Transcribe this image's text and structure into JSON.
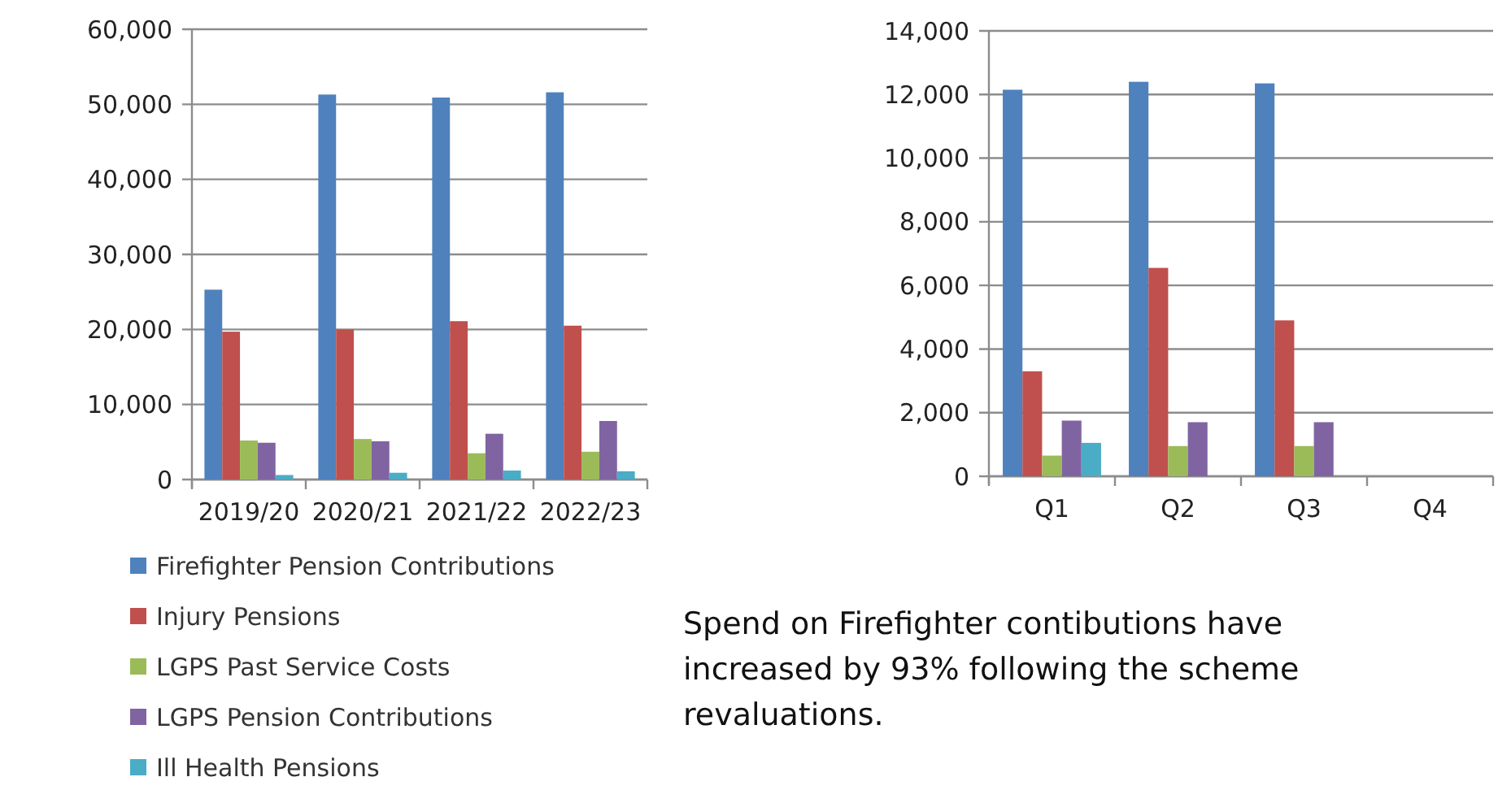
{
  "chart_data": [
    {
      "type": "bar",
      "categories": [
        "2019/20",
        "2020/21",
        "2021/22",
        "2022/23"
      ],
      "ylim": [
        0,
        60000
      ],
      "yticks": [
        {
          "value": 0,
          "label": "0"
        },
        {
          "value": 10000,
          "label": "10,000"
        },
        {
          "value": 20000,
          "label": "20,000"
        },
        {
          "value": 30000,
          "label": "30,000"
        },
        {
          "value": 40000,
          "label": "40,000"
        },
        {
          "value": 50000,
          "label": "50,000"
        },
        {
          "value": 60000,
          "label": "60,000"
        }
      ],
      "grid": "y",
      "legend": "bottom",
      "series": [
        {
          "name": "Firefighter Pension Contributions",
          "color": "#4f81bd",
          "values": [
            25300,
            51300,
            50900,
            51600
          ]
        },
        {
          "name": "Injury Pensions",
          "color": "#c0504d",
          "values": [
            19700,
            20000,
            21100,
            20500
          ]
        },
        {
          "name": "LGPS Past Service Costs",
          "color": "#9bbb59",
          "values": [
            5200,
            5400,
            3500,
            3700
          ]
        },
        {
          "name": "LGPS Pension Contributions",
          "color": "#8064a2",
          "values": [
            4900,
            5100,
            6100,
            7800
          ]
        },
        {
          "name": "Ill Health Pensions",
          "color": "#4bacc6",
          "values": [
            600,
            900,
            1200,
            1100
          ]
        }
      ]
    },
    {
      "type": "bar",
      "categories": [
        "Q1",
        "Q2",
        "Q3",
        "Q4"
      ],
      "ylim": [
        0,
        14000
      ],
      "yticks": [
        {
          "value": 0,
          "label": "0"
        },
        {
          "value": 2000,
          "label": "2,000"
        },
        {
          "value": 4000,
          "label": "4,000"
        },
        {
          "value": 6000,
          "label": "6,000"
        },
        {
          "value": 8000,
          "label": "8,000"
        },
        {
          "value": 10000,
          "label": "10,000"
        },
        {
          "value": 12000,
          "label": "12,000"
        },
        {
          "value": 14000,
          "label": "14,000"
        }
      ],
      "grid": "y",
      "annotations": [
        "Spend on Firefighter contibutions have increased by 93% following the scheme revaluations."
      ],
      "series": [
        {
          "color": "#4f81bd",
          "values": [
            12150,
            12400,
            12350,
            null
          ]
        },
        {
          "color": "#c0504d",
          "values": [
            3300,
            6550,
            4900,
            null
          ]
        },
        {
          "color": "#9bbb59",
          "values": [
            650,
            950,
            950,
            null
          ]
        },
        {
          "color": "#8064a2",
          "values": [
            1750,
            1700,
            1700,
            null
          ]
        },
        {
          "color": "#4bacc6",
          "values": [
            1050,
            null,
            null,
            null
          ]
        }
      ]
    }
  ]
}
